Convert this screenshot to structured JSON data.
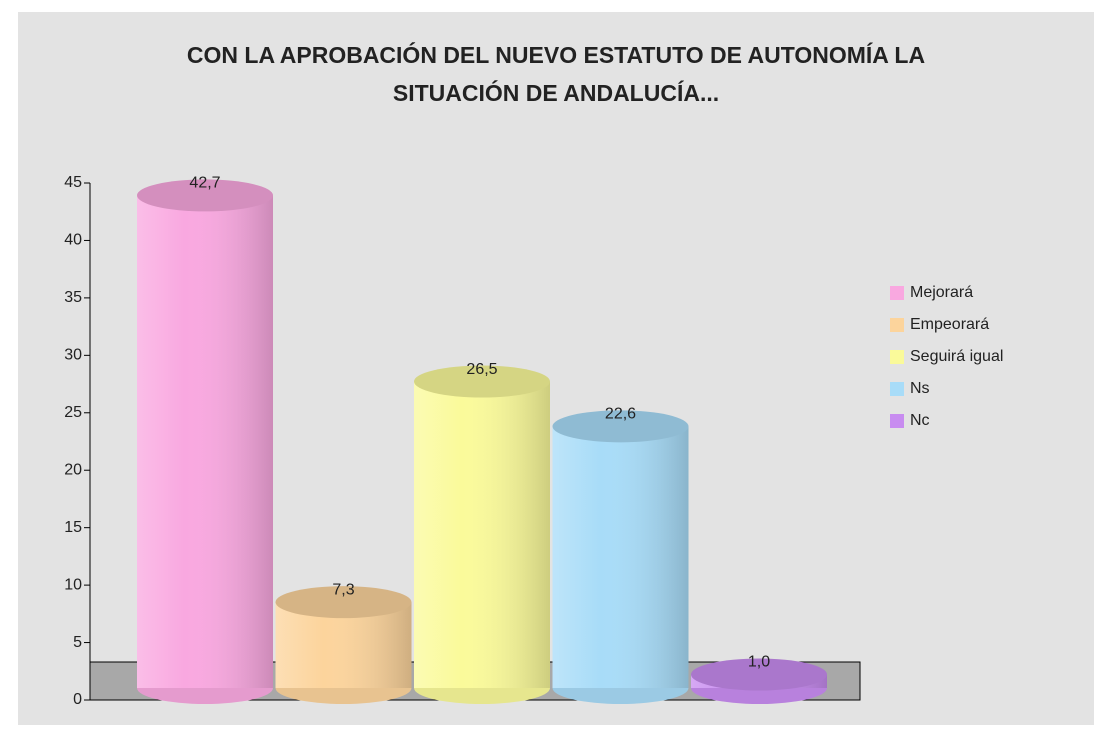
{
  "chart_data": {
    "type": "bar",
    "title": "CON LA APROBACIÓN DEL NUEVO ESTATUTO DE AUTONOMÍA LA SITUACIÓN DE ANDALUCÍA...",
    "categories": [
      "Mejorará",
      "Empeorará",
      "Seguirá igual",
      "Ns",
      "Nc"
    ],
    "values": [
      42.7,
      7.3,
      26.5,
      22.6,
      1.0
    ],
    "value_labels": [
      "42,7",
      "7,3",
      "26,5",
      "22,6",
      "1,0"
    ],
    "colors": [
      "#f9a8e0",
      "#fcd49c",
      "#fafa9a",
      "#a8dcf8",
      "#c88cf0"
    ],
    "ylim": [
      0,
      45
    ],
    "yticks": [
      0,
      5,
      10,
      15,
      20,
      25,
      30,
      35,
      40,
      45
    ],
    "legend": "right"
  }
}
